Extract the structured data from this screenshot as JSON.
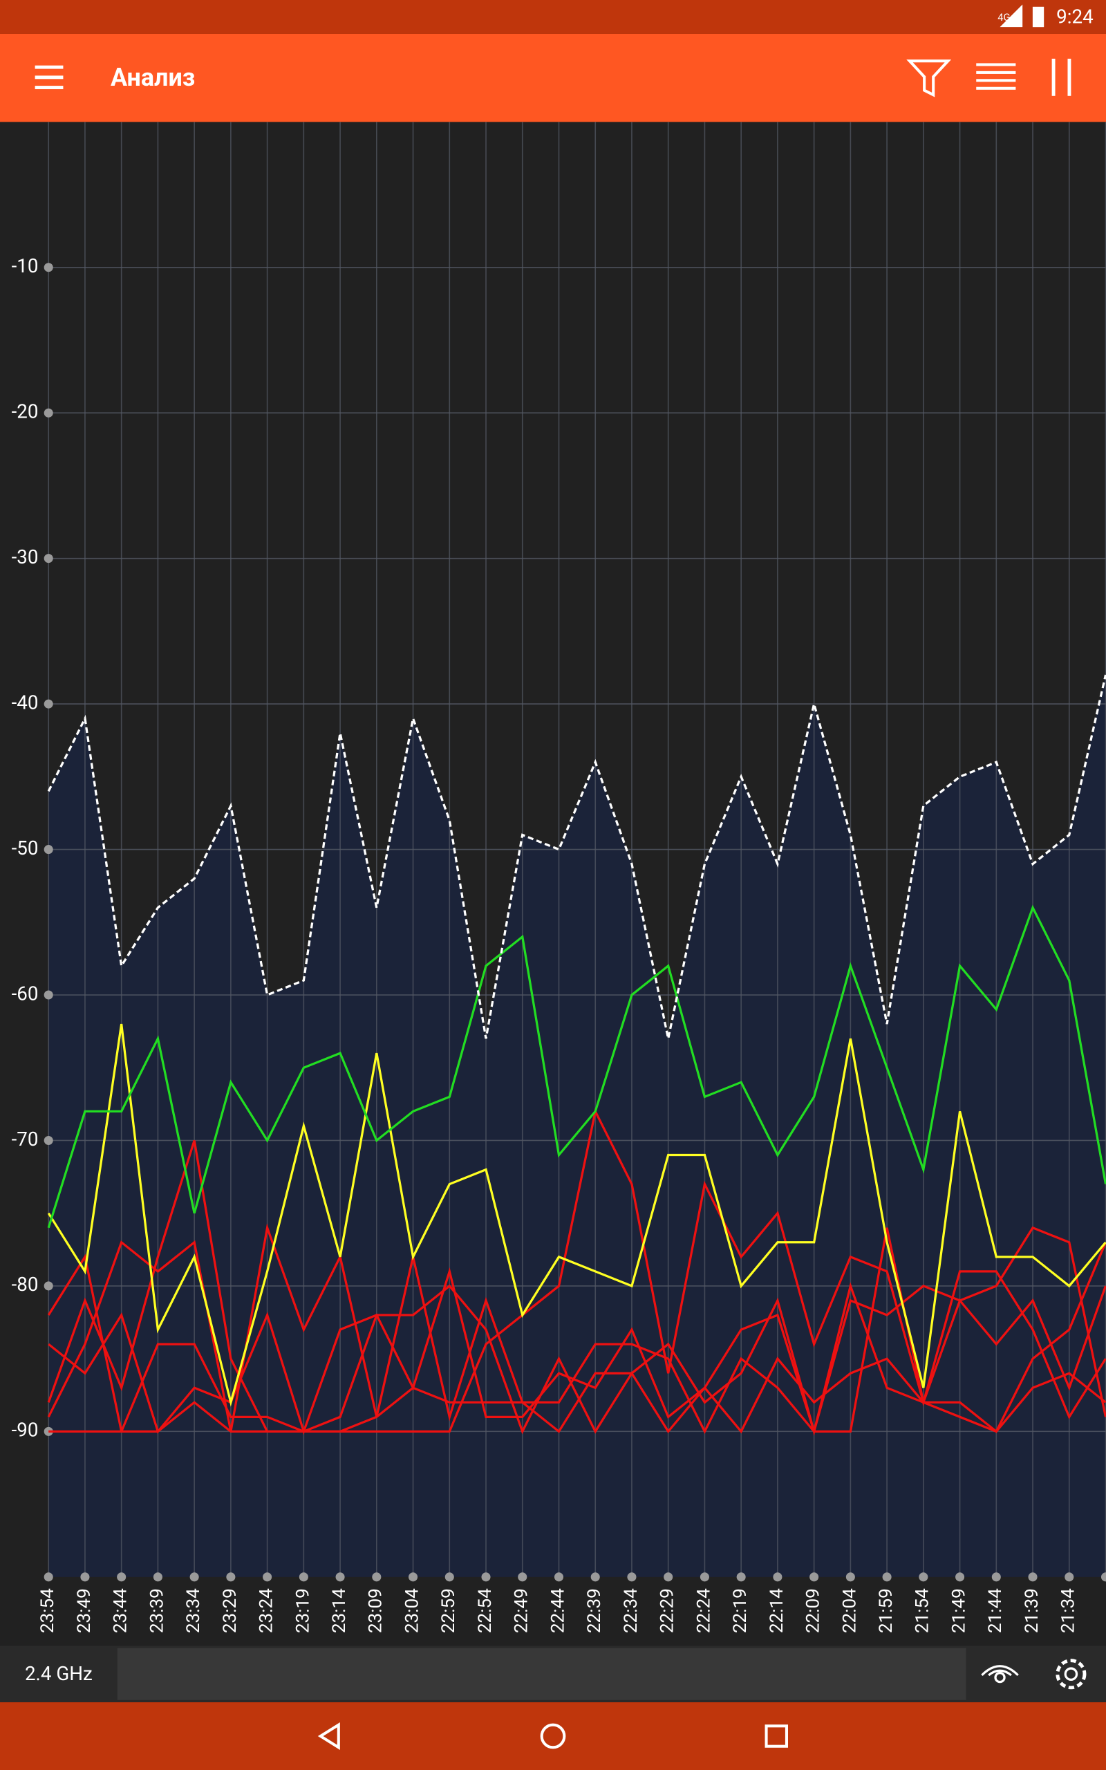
{
  "status_bar": {
    "time": "9:24",
    "network": "4G"
  },
  "toolbar": {
    "title": "Анализ"
  },
  "chart_data": {
    "type": "line",
    "categories": [
      "23:54",
      "23:49",
      "23:44",
      "23:39",
      "23:34",
      "23:29",
      "23:24",
      "23:19",
      "23:14",
      "23:09",
      "23:04",
      "22:59",
      "22:54",
      "22:49",
      "22:44",
      "22:39",
      "22:34",
      "22:29",
      "22:24",
      "22:19",
      "22:14",
      "22:09",
      "22:04",
      "21:59",
      "21:54",
      "21:49",
      "21:44",
      "21:39",
      "21:34",
      null
    ],
    "ylim": [
      -100,
      0
    ],
    "yticks": [
      -10,
      -20,
      -30,
      -40,
      -50,
      -60,
      -70,
      -80,
      -90
    ],
    "grid": true,
    "series": [
      {
        "color": "#ffffff",
        "line_style": "dashed",
        "area_color": "#1b2339",
        "values": [
          -46,
          -41,
          -58,
          -54,
          -52,
          -47,
          -60,
          -59,
          -42,
          -54,
          -41,
          -48,
          -63,
          -49,
          -50,
          -44,
          -51,
          -63,
          -51,
          -45,
          -51,
          -40,
          -49,
          -62,
          -47,
          -45,
          -44,
          -51,
          -49,
          -38
        ]
      },
      {
        "color": "#22dd22",
        "values": [
          -76,
          -68,
          -68,
          -63,
          -75,
          -66,
          -70,
          -65,
          -64,
          -70,
          -68,
          -67,
          -58,
          -56,
          -71,
          -68,
          -60,
          -58,
          -67,
          -66,
          -71,
          -67,
          -58,
          -65,
          -72,
          -58,
          -61,
          -54,
          -59,
          -73
        ]
      },
      {
        "color": "#ffff22",
        "values": [
          -75,
          -79,
          -62,
          -83,
          -78,
          -88,
          -79,
          -69,
          -78,
          -64,
          -78,
          -73,
          -72,
          -82,
          -78,
          -79,
          -80,
          -71,
          -71,
          -80,
          -77,
          -77,
          -63,
          -77,
          -87,
          -68,
          -78,
          -78,
          -80,
          -77
        ]
      },
      {
        "color": "#ee1111",
        "values": [
          -82,
          -78,
          -90,
          -90,
          -88,
          -90,
          -90,
          -90,
          -90,
          -90,
          -90,
          -90,
          -84,
          -82,
          -80,
          -68,
          -73,
          -86,
          -73,
          -78,
          -75,
          -84,
          -78,
          -79,
          -88,
          -88,
          -90,
          -85,
          -83,
          -77
        ]
      },
      {
        "color": "#ee1111",
        "values": [
          -88,
          -81,
          -87,
          -78,
          -70,
          -85,
          -90,
          -90,
          -90,
          -89,
          -87,
          -88,
          -88,
          -88,
          -88,
          -84,
          -84,
          -85,
          -90,
          -85,
          -87,
          -90,
          -90,
          -76,
          -88,
          -81,
          -84,
          -81,
          -87,
          -80
        ]
      },
      {
        "color": "#ee1111",
        "values": [
          -89,
          -84,
          -77,
          -79,
          -77,
          -90,
          -76,
          -83,
          -78,
          -89,
          -78,
          -89,
          -81,
          -88,
          -90,
          -86,
          -86,
          -84,
          -88,
          -86,
          -81,
          -90,
          -81,
          -82,
          -80,
          -81,
          -80,
          -76,
          -77,
          -89
        ]
      },
      {
        "color": "#ee1111",
        "values": [
          -90,
          -90,
          -90,
          -84,
          -84,
          -89,
          -89,
          -90,
          -89,
          -82,
          -82,
          -80,
          -83,
          -90,
          -85,
          -90,
          -86,
          -90,
          -87,
          -90,
          -85,
          -88,
          -86,
          -85,
          -88,
          -79,
          -79,
          -83,
          -89,
          -85
        ]
      },
      {
        "color": "#ee1111",
        "values": [
          -84,
          -86,
          -82,
          -90,
          -87,
          -88,
          -82,
          -90,
          -83,
          -82,
          -87,
          -79,
          -89,
          -89,
          -86,
          -87,
          -83,
          -89,
          -87,
          -83,
          -82,
          -90,
          -80,
          -87,
          -88,
          -89,
          -90,
          -87,
          -86,
          -88
        ]
      }
    ]
  },
  "bottom_bar": {
    "band": "2.4 GHz"
  }
}
